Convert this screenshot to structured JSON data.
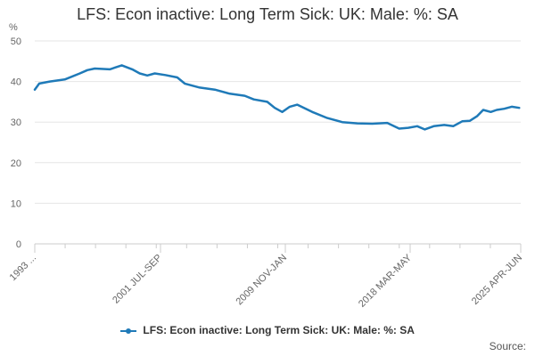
{
  "chart_data": {
    "type": "line",
    "title": "LFS: Econ inactive: Long Term Sick: UK: Male: %: SA",
    "ylabel": "%",
    "xlabel": "",
    "ylim": [
      0,
      50
    ],
    "yticks": [
      0,
      10,
      20,
      30,
      40,
      50
    ],
    "x_tick_labels": [
      "1993 ...",
      "2001 JUL-SEP",
      "2009 NOV-JAN",
      "2018 MAR-MAY",
      "2025 APR-JUN"
    ],
    "grid": true,
    "legend_position": "bottom",
    "series": [
      {
        "name": "LFS: Econ inactive: Long Term Sick: UK: Male: %: SA",
        "color": "#1f7ab8",
        "x": [
          1993.0,
          1993.3,
          1994.0,
          1995.0,
          1996.0,
          1996.5,
          1997.0,
          1998.0,
          1998.8,
          1999.5,
          2000.0,
          2000.5,
          2001.0,
          2001.7,
          2002.5,
          2003.0,
          2004.0,
          2005.0,
          2006.0,
          2007.0,
          2007.6,
          2008.5,
          2009.0,
          2009.5,
          2010.0,
          2010.5,
          2011.5,
          2012.5,
          2013.5,
          2014.5,
          2015.5,
          2016.5,
          2017.3,
          2017.9,
          2018.5,
          2019.0,
          2019.6,
          2020.3,
          2020.9,
          2021.5,
          2022.0,
          2022.5,
          2022.9,
          2023.4,
          2023.8,
          2024.3,
          2024.8,
          2025.3
        ],
        "values": [
          38.0,
          39.5,
          40.0,
          40.5,
          42.0,
          42.8,
          43.2,
          43.0,
          44.0,
          43.0,
          42.0,
          41.5,
          42.0,
          41.6,
          41.0,
          39.5,
          38.5,
          38.0,
          37.0,
          36.5,
          35.6,
          35.0,
          33.5,
          32.5,
          33.8,
          34.3,
          32.5,
          31.0,
          30.0,
          29.7,
          29.6,
          29.8,
          28.4,
          28.6,
          29.0,
          28.2,
          29.0,
          29.3,
          29.0,
          30.2,
          30.3,
          31.5,
          33.0,
          32.5,
          33.0,
          33.3,
          33.8,
          33.5
        ]
      }
    ]
  },
  "legend_label": "LFS: Econ inactive: Long Term Sick: UK: Male: %: SA",
  "source_label": "Source:"
}
